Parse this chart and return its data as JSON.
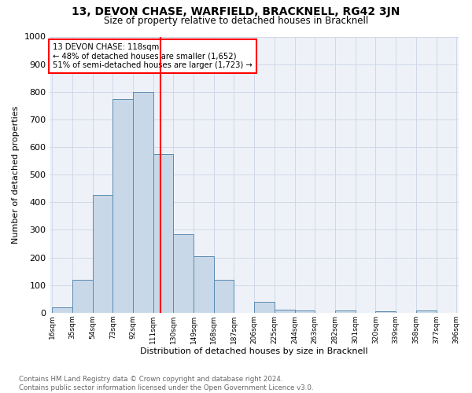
{
  "title": "13, DEVON CHASE, WARFIELD, BRACKNELL, RG42 3JN",
  "subtitle": "Size of property relative to detached houses in Bracknell",
  "xlabel": "Distribution of detached houses by size in Bracknell",
  "ylabel": "Number of detached properties",
  "footnote": "Contains HM Land Registry data © Crown copyright and database right 2024.\nContains public sector information licensed under the Open Government Licence v3.0.",
  "bin_edges": [
    16,
    35,
    54,
    73,
    92,
    111,
    130,
    149,
    168,
    187,
    206,
    225,
    244,
    263,
    282,
    301,
    320,
    339,
    358,
    377,
    396
  ],
  "bar_heights": [
    20,
    120,
    425,
    775,
    800,
    575,
    285,
    205,
    120,
    0,
    40,
    12,
    8,
    0,
    8,
    0,
    5,
    0,
    8,
    0
  ],
  "bar_color": "#c8d8e8",
  "bar_edge_color": "#5a8ab0",
  "x_tick_labels": [
    "16sqm",
    "35sqm",
    "54sqm",
    "73sqm",
    "92sqm",
    "111sqm",
    "130sqm",
    "149sqm",
    "168sqm",
    "187sqm",
    "206sqm",
    "225sqm",
    "244sqm",
    "263sqm",
    "282sqm",
    "301sqm",
    "320sqm",
    "339sqm",
    "358sqm",
    "377sqm",
    "396sqm"
  ],
  "ylim": [
    0,
    1000
  ],
  "red_line_x": 118,
  "annotation_title": "13 DEVON CHASE: 118sqm",
  "annotation_line1": "← 48% of detached houses are smaller (1,652)",
  "annotation_line2": "51% of semi-detached houses are larger (1,723) →",
  "grid_color": "#d0d8e8",
  "bg_color": "#eef2f8"
}
